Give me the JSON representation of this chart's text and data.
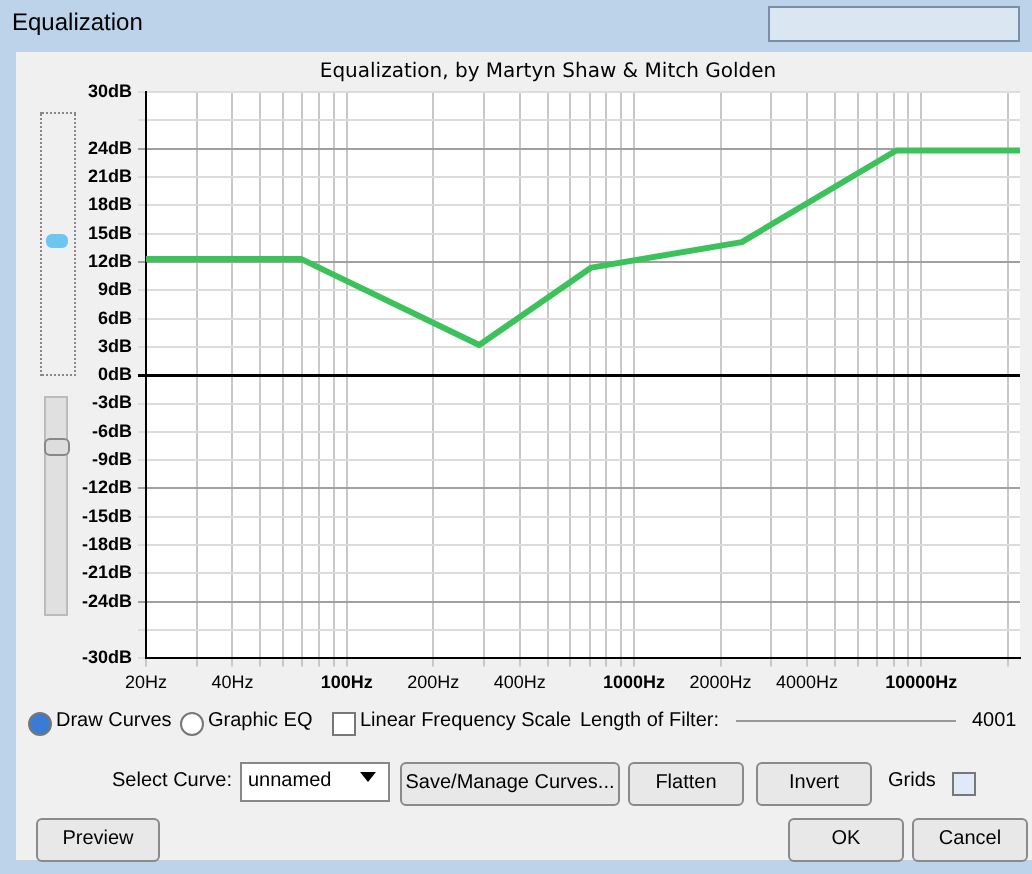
{
  "chart_data": {
    "type": "line",
    "title": "Equalization",
    "subtitle": "Equalization, by Martyn Shaw & Mitch Golden",
    "x": [
      20,
      69.5,
      289,
      710,
      2370,
      8180,
      22050
    ],
    "series": [
      {
        "color": "#3cc25a",
        "values": [
          12.3,
          12.3,
          3.2,
          11.4,
          14.1,
          23.8,
          23.8
        ]
      }
    ],
    "log": "x",
    "xlim": [
      20,
      22050
    ],
    "xticks": [
      {
        "value": 20,
        "label": "20Hz"
      },
      {
        "value": 30,
        "label": null
      },
      {
        "value": 40,
        "label": "40Hz"
      },
      {
        "value": 50,
        "label": null
      },
      {
        "value": 60,
        "label": null
      },
      {
        "value": 70,
        "label": null
      },
      {
        "value": 80,
        "label": null
      },
      {
        "value": 90,
        "label": null
      },
      {
        "value": 100,
        "label": "100Hz"
      },
      {
        "value": 200,
        "label": "200Hz"
      },
      {
        "value": 300,
        "label": null
      },
      {
        "value": 400,
        "label": "400Hz"
      },
      {
        "value": 500,
        "label": null
      },
      {
        "value": 600,
        "label": null
      },
      {
        "value": 700,
        "label": null
      },
      {
        "value": 800,
        "label": null
      },
      {
        "value": 900,
        "label": null
      },
      {
        "value": 1000,
        "label": "1000Hz"
      },
      {
        "value": 2000,
        "label": "2000Hz"
      },
      {
        "value": 3000,
        "label": null
      },
      {
        "value": 4000,
        "label": "4000Hz"
      },
      {
        "value": 5000,
        "label": null
      },
      {
        "value": 6000,
        "label": null
      },
      {
        "value": 7000,
        "label": null
      },
      {
        "value": 8000,
        "label": null
      },
      {
        "value": 9000,
        "label": null
      },
      {
        "value": 10000,
        "label": "10000Hz"
      },
      {
        "value": 20000,
        "label": null
      }
    ],
    "ylim": [
      -30,
      30
    ],
    "yticks": [
      {
        "value": -30,
        "label": "-30dB"
      },
      {
        "value": -27,
        "label": null
      },
      {
        "value": -24,
        "label": "-24dB"
      },
      {
        "value": -21,
        "label": "-21dB"
      },
      {
        "value": -18,
        "label": "-18dB"
      },
      {
        "value": -15,
        "label": "-15dB"
      },
      {
        "value": -12,
        "label": "-12dB"
      },
      {
        "value": -9,
        "label": "-9dB"
      },
      {
        "value": -6,
        "label": "-6dB"
      },
      {
        "value": -3,
        "label": "-3dB"
      },
      {
        "value": 0,
        "label": "0dB"
      },
      {
        "value": 3,
        "label": "3dB"
      },
      {
        "value": 6,
        "label": "6dB"
      },
      {
        "value": 9,
        "label": "9dB"
      },
      {
        "value": 12,
        "label": "12dB"
      },
      {
        "value": 15,
        "label": "15dB"
      },
      {
        "value": 18,
        "label": "18dB"
      },
      {
        "value": 21,
        "label": "21dB"
      },
      {
        "value": 24,
        "label": "24dB"
      },
      {
        "value": 27,
        "label": null
      },
      {
        "value": 30,
        "label": "30dB"
      }
    ],
    "grid": true,
    "marker": "none",
    "line_style": "solid",
    "legend": false,
    "annotations": [
      "Draw Curves",
      "Graphic EQ",
      "Linear Frequency Scale",
      "Length of Filter:",
      "4001",
      "Select Curve:",
      "unnamed",
      "Save/Manage Curves...",
      "Flatten",
      "Invert",
      "Grids",
      "Preview",
      "OK",
      "Cancel"
    ]
  }
}
